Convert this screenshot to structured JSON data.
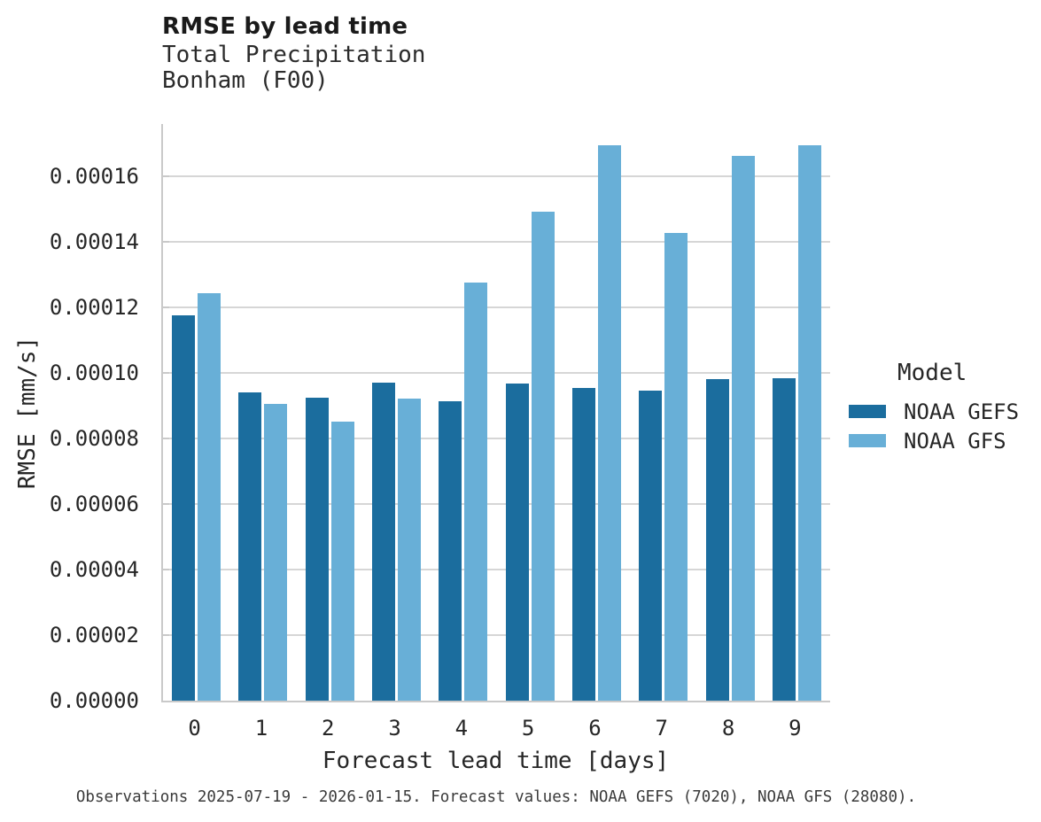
{
  "header": {
    "title": "RMSE by lead time",
    "subtitle_line1": "Total Precipitation",
    "subtitle_line2": "Bonham (F00)"
  },
  "legend": {
    "title": "Model"
  },
  "footer": {
    "caption": "Observations 2025-07-19 - 2026-01-15. Forecast values: NOAA GEFS (7020), NOAA GFS (28080)."
  },
  "colors": {
    "noaa_gefs": "#1b6d9e",
    "noaa_gfs": "#68afd7",
    "gridline": "#d6d6d6",
    "axis_spine": "#c9c9c9",
    "text": "#262626",
    "caption_text": "#3a3a3a"
  },
  "chart_data": {
    "type": "bar",
    "title": "RMSE by lead time",
    "subtitle": [
      "Total Precipitation",
      "Bonham (F00)"
    ],
    "xlabel": "Forecast lead time [days]",
    "ylabel": "RMSE [mm/s]",
    "categories": [
      "0",
      "1",
      "2",
      "3",
      "4",
      "5",
      "6",
      "7",
      "8",
      "9"
    ],
    "series": [
      {
        "name": "NOAA GEFS",
        "color": "#1b6d9e",
        "values": [
          0.0001176,
          9.4e-05,
          9.23e-05,
          9.69e-05,
          9.13e-05,
          9.66e-05,
          9.53e-05,
          9.46e-05,
          9.8e-05,
          9.84e-05
        ]
      },
      {
        "name": "NOAA GFS",
        "color": "#68afd7",
        "values": [
          0.0001243,
          9.05e-05,
          8.51e-05,
          9.2e-05,
          0.0001276,
          0.0001491,
          0.0001693,
          0.0001427,
          0.0001661,
          0.0001693
        ]
      }
    ],
    "ylim": [
      0,
      0.0001758
    ],
    "ytick_step": 2e-05,
    "ytick_labels": [
      "0.00000",
      "0.00002",
      "0.00004",
      "0.00006",
      "0.00008",
      "0.00010",
      "0.00012",
      "0.00014",
      "0.00016"
    ],
    "grid": "horizontal",
    "legend_title": "Model",
    "legend_position": "right",
    "caption": "Observations 2025-07-19 - 2026-01-15. Forecast values: NOAA GEFS (7020), NOAA GFS (28080)."
  }
}
